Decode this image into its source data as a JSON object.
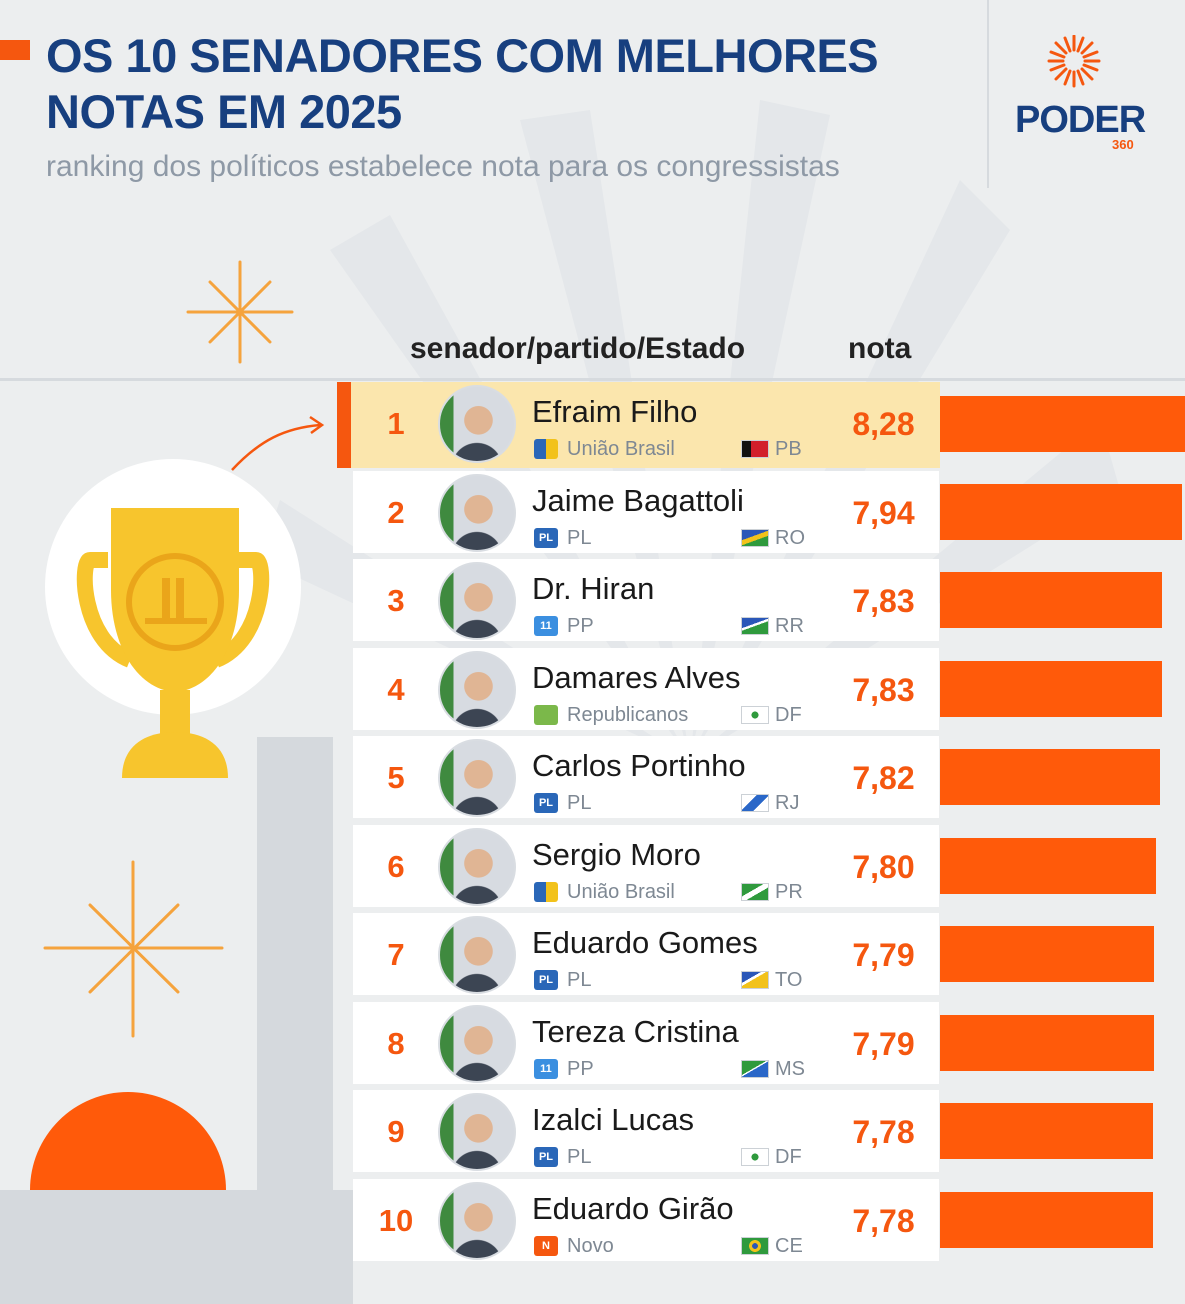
{
  "header": {
    "title": "OS 10 SENADORES COM MELHORES NOTAS EM 2025",
    "subtitle": "ranking dos políticos estabelece nota para os congressistas"
  },
  "logo": {
    "text": "PODER",
    "sub": "360"
  },
  "columns": {
    "senator": "senador/partido/Estado",
    "score": "nota"
  },
  "colors": {
    "accent": "#f5570f",
    "bar": "#ff5a0a",
    "title": "#173f7f",
    "highlight": "#fbe6ad",
    "trophy": "#f7c52d"
  },
  "chart_data": {
    "type": "bar",
    "orientation": "horizontal",
    "title": "OS 10 SENADORES COM MELHORES NOTAS EM 2025",
    "subtitle": "ranking dos políticos estabelece nota para os congressistas",
    "rows": [
      {
        "rank": "1",
        "name": "Efraim Filho",
        "party": "União Brasil",
        "party_icon": "uniao-brasil-icon",
        "state": "PB",
        "flag_icon": "flag-pb-icon",
        "score": 8.28,
        "score_label": "8,28"
      },
      {
        "rank": "2",
        "name": "Jaime Bagattoli",
        "party": "PL",
        "party_icon": "pl-icon",
        "state": "RO",
        "flag_icon": "flag-ro-icon",
        "score": 7.94,
        "score_label": "7,94"
      },
      {
        "rank": "3",
        "name": "Dr. Hiran",
        "party": "PP",
        "party_icon": "pp-icon",
        "state": "RR",
        "flag_icon": "flag-rr-icon",
        "score": 7.83,
        "score_label": "7,83"
      },
      {
        "rank": "4",
        "name": "Damares Alves",
        "party": "Republicanos",
        "party_icon": "republicanos-icon",
        "state": "DF",
        "flag_icon": "flag-df-icon",
        "score": 7.83,
        "score_label": "7,83"
      },
      {
        "rank": "5",
        "name": "Carlos Portinho",
        "party": "PL",
        "party_icon": "pl-icon",
        "state": "RJ",
        "flag_icon": "flag-rj-icon",
        "score": 7.82,
        "score_label": "7,82"
      },
      {
        "rank": "6",
        "name": "Sergio Moro",
        "party": "União Brasil",
        "party_icon": "uniao-brasil-icon",
        "state": "PR",
        "flag_icon": "flag-pr-icon",
        "score": 7.8,
        "score_label": "7,80"
      },
      {
        "rank": "7",
        "name": "Eduardo Gomes",
        "party": "PL",
        "party_icon": "pl-icon",
        "state": "TO",
        "flag_icon": "flag-to-icon",
        "score": 7.79,
        "score_label": "7,79"
      },
      {
        "rank": "8",
        "name": "Tereza Cristina",
        "party": "PP",
        "party_icon": "pp-icon",
        "state": "MS",
        "flag_icon": "flag-ms-icon",
        "score": 7.79,
        "score_label": "7,79"
      },
      {
        "rank": "9",
        "name": "Izalci Lucas",
        "party": "PL",
        "party_icon": "pl-icon",
        "state": "DF",
        "flag_icon": "flag-df-icon",
        "score": 7.78,
        "score_label": "7,78"
      },
      {
        "rank": "10",
        "name": "Eduardo Girão",
        "party": "Novo",
        "party_icon": "novo-icon",
        "state": "CE",
        "flag_icon": "flag-ce-icon",
        "score": 7.78,
        "score_label": "7,78"
      }
    ]
  }
}
